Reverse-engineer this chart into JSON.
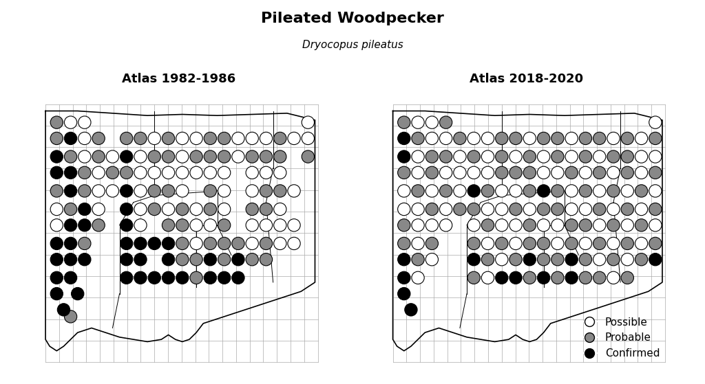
{
  "title": "Pileated Woodpecker",
  "subtitle": "Dryocopus pileatus",
  "left_label": "Atlas 1982-1986",
  "right_label": "Atlas 2018-2020",
  "title_fontsize": 16,
  "subtitle_fontsize": 11,
  "label_fontsize": 13,
  "legend_labels": [
    "Possible",
    "Probable",
    "Confirmed"
  ],
  "legend_colors": [
    "white",
    "#999999",
    "black"
  ],
  "background_color": "white",
  "grid_color": "#aaaaaa",
  "circle_edgecolor": "black",
  "lon_min": -73.8,
  "lon_max": -71.75,
  "lat_min": 40.9,
  "lat_max": 42.15,
  "ct_outline_lon": [
    -73.73,
    -73.5,
    -73.25,
    -73.0,
    -72.75,
    -72.5,
    -72.25,
    -72.0,
    -71.8,
    -71.8,
    -71.8,
    -71.85,
    -71.9,
    -72.0,
    -72.1,
    -72.2,
    -72.3,
    -72.4,
    -72.5,
    -72.6,
    -72.65,
    -72.7,
    -72.75,
    -72.8,
    -72.85,
    -72.9,
    -73.0,
    -73.1,
    -73.2,
    -73.3,
    -73.4,
    -73.5,
    -73.55,
    -73.6,
    -73.65,
    -73.7,
    -73.73,
    -73.73
  ],
  "ct_outline_lat": [
    42.05,
    42.05,
    42.04,
    42.03,
    42.035,
    42.03,
    42.035,
    42.04,
    42.01,
    41.65,
    41.3,
    41.28,
    41.26,
    41.24,
    41.22,
    41.2,
    41.18,
    41.16,
    41.14,
    41.12,
    41.08,
    41.05,
    41.04,
    41.05,
    41.07,
    41.05,
    41.04,
    41.05,
    41.06,
    41.08,
    41.1,
    41.08,
    41.05,
    41.02,
    41.0,
    41.02,
    41.05,
    42.05
  ],
  "county_lines": [
    [
      [
        -72.95,
        -72.95
      ],
      [
        42.05,
        41.68
      ]
    ],
    [
      [
        -72.95,
        -73.1
      ],
      [
        41.68,
        41.65
      ]
    ],
    [
      [
        -73.1,
        -73.2
      ],
      [
        41.65,
        41.55
      ]
    ],
    [
      [
        -73.2,
        -73.2
      ],
      [
        41.55,
        41.25
      ]
    ],
    [
      [
        -72.1,
        -72.1
      ],
      [
        42.05,
        41.8
      ]
    ],
    [
      [
        -72.1,
        -72.15
      ],
      [
        41.8,
        41.65
      ]
    ],
    [
      [
        -72.5,
        -72.95
      ],
      [
        41.7,
        41.68
      ]
    ],
    [
      [
        -72.5,
        -72.5
      ],
      [
        41.7,
        41.55
      ]
    ],
    [
      [
        -72.5,
        -72.4
      ],
      [
        41.55,
        41.42
      ]
    ],
    [
      [
        -72.15,
        -72.1
      ],
      [
        41.65,
        41.3
      ]
    ],
    [
      [
        -72.65,
        -72.5
      ],
      [
        41.55,
        41.55
      ]
    ],
    [
      [
        -72.65,
        -72.65
      ],
      [
        41.55,
        41.28
      ]
    ],
    [
      [
        -73.2,
        -73.2
      ],
      [
        41.55,
        41.25
      ]
    ],
    [
      [
        -73.2,
        -73.25
      ],
      [
        41.25,
        41.1
      ]
    ]
  ],
  "atlas1_data": [
    [
      -73.65,
      42.0,
      1
    ],
    [
      -73.55,
      42.0,
      0
    ],
    [
      -73.45,
      42.0,
      0
    ],
    [
      -73.65,
      41.93,
      1
    ],
    [
      -73.55,
      41.93,
      2
    ],
    [
      -73.45,
      41.93,
      0
    ],
    [
      -73.35,
      41.93,
      1
    ],
    [
      -73.65,
      41.85,
      2
    ],
    [
      -73.55,
      41.85,
      1
    ],
    [
      -73.45,
      41.85,
      0
    ],
    [
      -73.35,
      41.85,
      1
    ],
    [
      -73.25,
      41.85,
      0
    ],
    [
      -73.65,
      41.78,
      2
    ],
    [
      -73.55,
      41.78,
      2
    ],
    [
      -73.45,
      41.78,
      1
    ],
    [
      -73.35,
      41.78,
      0
    ],
    [
      -73.25,
      41.78,
      1
    ],
    [
      -73.65,
      41.7,
      1
    ],
    [
      -73.55,
      41.7,
      2
    ],
    [
      -73.45,
      41.7,
      1
    ],
    [
      -73.35,
      41.7,
      0
    ],
    [
      -73.25,
      41.7,
      0
    ],
    [
      -73.65,
      41.62,
      0
    ],
    [
      -73.55,
      41.62,
      1
    ],
    [
      -73.45,
      41.62,
      2
    ],
    [
      -73.35,
      41.62,
      0
    ],
    [
      -73.65,
      41.55,
      0
    ],
    [
      -73.55,
      41.55,
      2
    ],
    [
      -73.45,
      41.55,
      2
    ],
    [
      -73.35,
      41.55,
      1
    ],
    [
      -73.65,
      41.47,
      2
    ],
    [
      -73.55,
      41.47,
      2
    ],
    [
      -73.45,
      41.47,
      1
    ],
    [
      -73.65,
      41.4,
      2
    ],
    [
      -73.55,
      41.4,
      2
    ],
    [
      -73.45,
      41.4,
      2
    ],
    [
      -73.65,
      41.32,
      2
    ],
    [
      -73.55,
      41.32,
      2
    ],
    [
      -73.5,
      41.25,
      2
    ],
    [
      -73.65,
      41.25,
      2
    ],
    [
      -73.6,
      41.18,
      2
    ],
    [
      -73.55,
      41.15,
      1
    ],
    [
      -73.15,
      41.93,
      1
    ],
    [
      -73.05,
      41.93,
      1
    ],
    [
      -72.95,
      41.93,
      0
    ],
    [
      -73.15,
      41.85,
      2
    ],
    [
      -73.05,
      41.85,
      0
    ],
    [
      -72.95,
      41.85,
      1
    ],
    [
      -73.15,
      41.78,
      1
    ],
    [
      -73.05,
      41.78,
      0
    ],
    [
      -72.95,
      41.78,
      0
    ],
    [
      -73.15,
      41.7,
      2
    ],
    [
      -73.05,
      41.7,
      0
    ],
    [
      -72.95,
      41.7,
      1
    ],
    [
      -73.15,
      41.62,
      2
    ],
    [
      -73.05,
      41.62,
      0
    ],
    [
      -72.95,
      41.62,
      1
    ],
    [
      -73.15,
      41.55,
      2
    ],
    [
      -73.05,
      41.55,
      0
    ],
    [
      -73.15,
      41.47,
      2
    ],
    [
      -73.05,
      41.47,
      2
    ],
    [
      -72.95,
      41.47,
      2
    ],
    [
      -73.15,
      41.4,
      2
    ],
    [
      -73.05,
      41.4,
      2
    ],
    [
      -73.15,
      41.32,
      2
    ],
    [
      -73.05,
      41.32,
      2
    ],
    [
      -72.95,
      41.32,
      2
    ],
    [
      -72.85,
      41.93,
      1
    ],
    [
      -72.75,
      41.93,
      0
    ],
    [
      -72.65,
      41.93,
      0
    ],
    [
      -72.85,
      41.85,
      1
    ],
    [
      -72.75,
      41.85,
      0
    ],
    [
      -72.65,
      41.85,
      1
    ],
    [
      -72.85,
      41.78,
      0
    ],
    [
      -72.75,
      41.78,
      0
    ],
    [
      -72.65,
      41.78,
      0
    ],
    [
      -72.85,
      41.7,
      1
    ],
    [
      -72.75,
      41.7,
      0
    ],
    [
      -72.85,
      41.62,
      0
    ],
    [
      -72.75,
      41.62,
      1
    ],
    [
      -72.65,
      41.62,
      0
    ],
    [
      -72.85,
      41.55,
      1
    ],
    [
      -72.75,
      41.55,
      1
    ],
    [
      -72.65,
      41.55,
      0
    ],
    [
      -72.85,
      41.47,
      2
    ],
    [
      -72.75,
      41.47,
      1
    ],
    [
      -72.65,
      41.47,
      0
    ],
    [
      -72.85,
      41.4,
      2
    ],
    [
      -72.75,
      41.4,
      1
    ],
    [
      -72.65,
      41.4,
      1
    ],
    [
      -72.85,
      41.32,
      2
    ],
    [
      -72.75,
      41.32,
      2
    ],
    [
      -72.65,
      41.32,
      1
    ],
    [
      -72.55,
      41.93,
      1
    ],
    [
      -72.45,
      41.93,
      1
    ],
    [
      -72.35,
      41.93,
      0
    ],
    [
      -72.55,
      41.85,
      1
    ],
    [
      -72.45,
      41.85,
      1
    ],
    [
      -72.35,
      41.85,
      0
    ],
    [
      -72.55,
      41.78,
      0
    ],
    [
      -72.45,
      41.78,
      0
    ],
    [
      -72.55,
      41.7,
      1
    ],
    [
      -72.45,
      41.7,
      0
    ],
    [
      -72.55,
      41.62,
      1
    ],
    [
      -72.45,
      41.62,
      0
    ],
    [
      -72.55,
      41.55,
      0
    ],
    [
      -72.45,
      41.55,
      1
    ],
    [
      -72.55,
      41.47,
      1
    ],
    [
      -72.45,
      41.47,
      1
    ],
    [
      -72.35,
      41.47,
      1
    ],
    [
      -72.55,
      41.4,
      2
    ],
    [
      -72.45,
      41.4,
      1
    ],
    [
      -72.35,
      41.4,
      2
    ],
    [
      -72.55,
      41.32,
      2
    ],
    [
      -72.45,
      41.32,
      2
    ],
    [
      -72.35,
      41.32,
      2
    ],
    [
      -72.25,
      41.93,
      0
    ],
    [
      -72.15,
      41.93,
      0
    ],
    [
      -72.25,
      41.85,
      1
    ],
    [
      -72.15,
      41.85,
      1
    ],
    [
      -72.25,
      41.78,
      0
    ],
    [
      -72.15,
      41.78,
      0
    ],
    [
      -72.25,
      41.7,
      0
    ],
    [
      -72.15,
      41.7,
      1
    ],
    [
      -72.25,
      41.62,
      1
    ],
    [
      -72.15,
      41.62,
      1
    ],
    [
      -72.25,
      41.55,
      0
    ],
    [
      -72.15,
      41.55,
      0
    ],
    [
      -72.25,
      41.47,
      0
    ],
    [
      -72.15,
      41.47,
      1
    ],
    [
      -72.25,
      41.4,
      1
    ],
    [
      -72.15,
      41.4,
      1
    ],
    [
      -72.05,
      41.93,
      1
    ],
    [
      -71.95,
      41.93,
      0
    ],
    [
      -72.05,
      41.85,
      1
    ],
    [
      -72.05,
      41.78,
      0
    ],
    [
      -72.05,
      41.7,
      1
    ],
    [
      -71.95,
      41.7,
      0
    ],
    [
      -72.05,
      41.62,
      0
    ],
    [
      -72.05,
      41.55,
      0
    ],
    [
      -71.95,
      41.55,
      0
    ],
    [
      -72.05,
      41.47,
      0
    ],
    [
      -71.95,
      41.47,
      0
    ],
    [
      -71.85,
      42.0,
      0
    ],
    [
      -71.85,
      41.93,
      0
    ],
    [
      -71.85,
      41.85,
      1
    ]
  ],
  "atlas2_data": [
    [
      -73.65,
      42.0,
      1
    ],
    [
      -73.55,
      42.0,
      0
    ],
    [
      -73.45,
      42.0,
      0
    ],
    [
      -73.35,
      42.0,
      1
    ],
    [
      -73.65,
      41.93,
      2
    ],
    [
      -73.55,
      41.93,
      1
    ],
    [
      -73.45,
      41.93,
      0
    ],
    [
      -73.35,
      41.93,
      0
    ],
    [
      -73.25,
      41.93,
      1
    ],
    [
      -73.65,
      41.85,
      2
    ],
    [
      -73.55,
      41.85,
      0
    ],
    [
      -73.45,
      41.85,
      1
    ],
    [
      -73.35,
      41.85,
      1
    ],
    [
      -73.25,
      41.85,
      0
    ],
    [
      -73.65,
      41.78,
      1
    ],
    [
      -73.55,
      41.78,
      0
    ],
    [
      -73.45,
      41.78,
      1
    ],
    [
      -73.35,
      41.78,
      0
    ],
    [
      -73.25,
      41.78,
      0
    ],
    [
      -73.65,
      41.7,
      0
    ],
    [
      -73.55,
      41.7,
      1
    ],
    [
      -73.45,
      41.7,
      0
    ],
    [
      -73.35,
      41.7,
      1
    ],
    [
      -73.25,
      41.7,
      0
    ],
    [
      -73.65,
      41.62,
      0
    ],
    [
      -73.55,
      41.62,
      0
    ],
    [
      -73.45,
      41.62,
      1
    ],
    [
      -73.35,
      41.62,
      0
    ],
    [
      -73.25,
      41.62,
      1
    ],
    [
      -73.65,
      41.55,
      1
    ],
    [
      -73.55,
      41.55,
      0
    ],
    [
      -73.45,
      41.55,
      0
    ],
    [
      -73.35,
      41.55,
      0
    ],
    [
      -73.65,
      41.47,
      1
    ],
    [
      -73.55,
      41.47,
      0
    ],
    [
      -73.45,
      41.47,
      1
    ],
    [
      -73.65,
      41.4,
      2
    ],
    [
      -73.55,
      41.4,
      1
    ],
    [
      -73.45,
      41.4,
      0
    ],
    [
      -73.65,
      41.32,
      2
    ],
    [
      -73.55,
      41.32,
      0
    ],
    [
      -73.65,
      41.25,
      2
    ],
    [
      -73.6,
      41.18,
      2
    ],
    [
      -73.15,
      41.93,
      0
    ],
    [
      -73.05,
      41.93,
      0
    ],
    [
      -72.95,
      41.93,
      1
    ],
    [
      -73.15,
      41.85,
      1
    ],
    [
      -73.05,
      41.85,
      0
    ],
    [
      -72.95,
      41.85,
      1
    ],
    [
      -73.15,
      41.78,
      0
    ],
    [
      -73.05,
      41.78,
      0
    ],
    [
      -72.95,
      41.78,
      1
    ],
    [
      -73.15,
      41.7,
      2
    ],
    [
      -73.05,
      41.7,
      1
    ],
    [
      -72.95,
      41.7,
      0
    ],
    [
      -73.15,
      41.62,
      1
    ],
    [
      -73.05,
      41.62,
      0
    ],
    [
      -72.95,
      41.62,
      0
    ],
    [
      -73.15,
      41.55,
      0
    ],
    [
      -73.05,
      41.55,
      1
    ],
    [
      -72.95,
      41.55,
      0
    ],
    [
      -73.15,
      41.47,
      1
    ],
    [
      -73.05,
      41.47,
      0
    ],
    [
      -72.95,
      41.47,
      1
    ],
    [
      -73.15,
      41.4,
      2
    ],
    [
      -73.05,
      41.4,
      1
    ],
    [
      -72.95,
      41.4,
      0
    ],
    [
      -73.15,
      41.32,
      1
    ],
    [
      -73.05,
      41.32,
      0
    ],
    [
      -72.95,
      41.32,
      2
    ],
    [
      -72.85,
      41.93,
      1
    ],
    [
      -72.75,
      41.93,
      0
    ],
    [
      -72.65,
      41.93,
      1
    ],
    [
      -72.85,
      41.85,
      0
    ],
    [
      -72.75,
      41.85,
      1
    ],
    [
      -72.65,
      41.85,
      0
    ],
    [
      -72.85,
      41.78,
      1
    ],
    [
      -72.75,
      41.78,
      1
    ],
    [
      -72.65,
      41.78,
      0
    ],
    [
      -72.85,
      41.7,
      0
    ],
    [
      -72.75,
      41.7,
      1
    ],
    [
      -72.65,
      41.7,
      2
    ],
    [
      -72.85,
      41.62,
      1
    ],
    [
      -72.75,
      41.62,
      0
    ],
    [
      -72.65,
      41.62,
      1
    ],
    [
      -72.85,
      41.55,
      0
    ],
    [
      -72.75,
      41.55,
      1
    ],
    [
      -72.65,
      41.55,
      0
    ],
    [
      -72.85,
      41.47,
      0
    ],
    [
      -72.75,
      41.47,
      1
    ],
    [
      -72.65,
      41.47,
      1
    ],
    [
      -72.85,
      41.4,
      1
    ],
    [
      -72.75,
      41.4,
      2
    ],
    [
      -72.65,
      41.4,
      1
    ],
    [
      -72.85,
      41.32,
      2
    ],
    [
      -72.75,
      41.32,
      1
    ],
    [
      -72.65,
      41.32,
      2
    ],
    [
      -72.55,
      41.93,
      1
    ],
    [
      -72.45,
      41.93,
      0
    ],
    [
      -72.35,
      41.93,
      1
    ],
    [
      -72.55,
      41.85,
      1
    ],
    [
      -72.45,
      41.85,
      0
    ],
    [
      -72.35,
      41.85,
      1
    ],
    [
      -72.55,
      41.78,
      0
    ],
    [
      -72.45,
      41.78,
      1
    ],
    [
      -72.35,
      41.78,
      0
    ],
    [
      -72.55,
      41.7,
      1
    ],
    [
      -72.45,
      41.7,
      0
    ],
    [
      -72.35,
      41.7,
      1
    ],
    [
      -72.55,
      41.62,
      1
    ],
    [
      -72.45,
      41.62,
      0
    ],
    [
      -72.35,
      41.62,
      0
    ],
    [
      -72.55,
      41.55,
      0
    ],
    [
      -72.45,
      41.55,
      1
    ],
    [
      -72.35,
      41.55,
      1
    ],
    [
      -72.55,
      41.47,
      0
    ],
    [
      -72.45,
      41.47,
      1
    ],
    [
      -72.35,
      41.47,
      0
    ],
    [
      -72.55,
      41.4,
      1
    ],
    [
      -72.45,
      41.4,
      2
    ],
    [
      -72.35,
      41.4,
      1
    ],
    [
      -72.55,
      41.32,
      1
    ],
    [
      -72.45,
      41.32,
      2
    ],
    [
      -72.35,
      41.32,
      1
    ],
    [
      -72.25,
      41.93,
      1
    ],
    [
      -72.15,
      41.93,
      0
    ],
    [
      -72.05,
      41.93,
      1
    ],
    [
      -71.95,
      41.93,
      0
    ],
    [
      -72.25,
      41.85,
      0
    ],
    [
      -72.15,
      41.85,
      1
    ],
    [
      -72.05,
      41.85,
      1
    ],
    [
      -71.95,
      41.85,
      0
    ],
    [
      -72.25,
      41.78,
      1
    ],
    [
      -72.15,
      41.78,
      0
    ],
    [
      -72.05,
      41.78,
      1
    ],
    [
      -71.95,
      41.78,
      0
    ],
    [
      -72.25,
      41.7,
      0
    ],
    [
      -72.15,
      41.7,
      1
    ],
    [
      -72.05,
      41.7,
      0
    ],
    [
      -71.95,
      41.7,
      1
    ],
    [
      -72.25,
      41.62,
      1
    ],
    [
      -72.15,
      41.62,
      0
    ],
    [
      -72.05,
      41.62,
      1
    ],
    [
      -71.95,
      41.62,
      0
    ],
    [
      -72.25,
      41.55,
      0
    ],
    [
      -72.15,
      41.55,
      1
    ],
    [
      -72.05,
      41.55,
      0
    ],
    [
      -71.95,
      41.55,
      1
    ],
    [
      -72.25,
      41.47,
      1
    ],
    [
      -72.15,
      41.47,
      0
    ],
    [
      -72.05,
      41.47,
      1
    ],
    [
      -71.95,
      41.47,
      0
    ],
    [
      -72.25,
      41.4,
      0
    ],
    [
      -72.15,
      41.4,
      1
    ],
    [
      -72.05,
      41.4,
      0
    ],
    [
      -71.95,
      41.4,
      1
    ],
    [
      -72.25,
      41.32,
      1
    ],
    [
      -72.15,
      41.32,
      0
    ],
    [
      -72.05,
      41.32,
      1
    ],
    [
      -71.85,
      42.0,
      0
    ],
    [
      -71.85,
      41.93,
      1
    ],
    [
      -71.85,
      41.85,
      0
    ],
    [
      -71.85,
      41.78,
      1
    ],
    [
      -71.85,
      41.7,
      0
    ],
    [
      -71.85,
      41.62,
      1
    ],
    [
      -71.85,
      41.55,
      0
    ],
    [
      -71.85,
      41.47,
      1
    ],
    [
      -71.85,
      41.4,
      2
    ]
  ]
}
